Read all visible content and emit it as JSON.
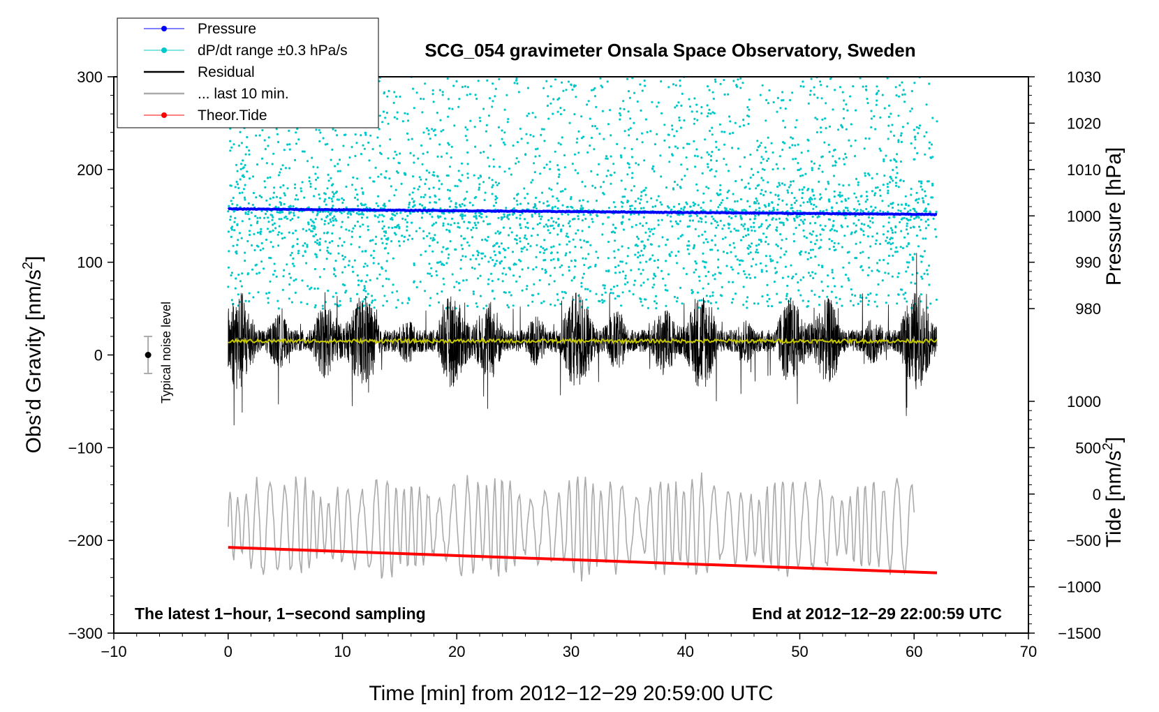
{
  "chart_data": {
    "type": "line",
    "title": "SCG_054 gravimeter Onsala Space Observatory, Sweden",
    "xlabel": "Time [min] from 2012−12−29 20:59:00 UTC",
    "ylabel_left": "Obs’d Gravity [nm/s",
    "ylabel_left_sup": "2",
    "ylabel_left_close": "]",
    "ylabel_right_pressure": "Pressure [hPa]",
    "ylabel_right_tide": "Tide [nm/s",
    "ylabel_right_tide_sup": "2",
    "ylabel_right_tide_close": "]",
    "xlim": [
      -10,
      70
    ],
    "ylim_left": [
      -300,
      300
    ],
    "x_ticks": [
      -10,
      0,
      10,
      20,
      30,
      40,
      50,
      60,
      70
    ],
    "x_tick_labels": [
      "−10",
      "0",
      "10",
      "20",
      "30",
      "40",
      "50",
      "60",
      "70"
    ],
    "y_left_ticks": [
      -300,
      -200,
      -100,
      0,
      100,
      200,
      300
    ],
    "y_left_tick_labels": [
      "−300",
      "−200",
      "−100",
      "0",
      "100",
      "200",
      "300"
    ],
    "pressure_axis": {
      "ticks": [
        980,
        990,
        1000,
        1010,
        1020,
        1030
      ],
      "tick_labels": [
        "980",
        "990",
        "1000",
        "1010",
        "1020",
        "1030"
      ],
      "gravity_at_980": 50,
      "gravity_per_hpa": 5
    },
    "tide_axis": {
      "ticks": [
        -1500,
        -1000,
        -500,
        0,
        500,
        1000
      ],
      "tick_labels": [
        "−1500",
        "−1000",
        "−500",
        "0",
        "500",
        "1000"
      ],
      "gravity_at_0": -150,
      "gravity_per_unit": 0.1
    },
    "annotation_left": "The latest 1−hour, 1−second sampling",
    "annotation_right": "End at 2012−12−29 22:00:59 UTC",
    "noise_label": "Typical noise level",
    "noise_bar": {
      "x": -7,
      "center": 0,
      "half_range": 20
    },
    "legend": [
      {
        "label": "Pressure",
        "color": "#0000ff",
        "marker": true
      },
      {
        "label": "dP/dt range ±0.3 hPa/s",
        "color": "#00c8c8",
        "marker": true
      },
      {
        "label": "Residual",
        "color": "#000000",
        "marker": false
      },
      {
        "label": "... last 10 min.",
        "color": "#aaaaaa",
        "marker": false
      },
      {
        "label": "Theor.Tide",
        "color": "#ff0000",
        "marker": true
      }
    ],
    "series": [
      {
        "name": "Pressure",
        "color": "#0000ff",
        "x_start": 0,
        "x_end": 62,
        "pressure_start": 1001.5,
        "pressure_end": 1000.3
      },
      {
        "name": "dP/dt range ±0.3 hPa/s",
        "color": "#00c8c8",
        "x_start": 0,
        "x_end": 62,
        "gravity_min": 50,
        "gravity_max": 300
      },
      {
        "name": "Residual",
        "color": "#000000",
        "x_start": 0,
        "x_end": 62,
        "gravity_range": [
          -95,
          115
        ]
      },
      {
        "name": "Residual mean",
        "color": "#c8c800",
        "x_start": 0,
        "x_end": 62,
        "gravity_level": 15
      },
      {
        "name": "... last 10 min.",
        "color": "#aaaaaa",
        "x_start": 0,
        "x_end": 60,
        "gravity_range": [
          -265,
          -105
        ]
      },
      {
        "name": "Theor.Tide",
        "color": "#ff0000",
        "x_start": 0,
        "x_end": 62,
        "tide_start": -575,
        "tide_end": -850
      }
    ]
  }
}
